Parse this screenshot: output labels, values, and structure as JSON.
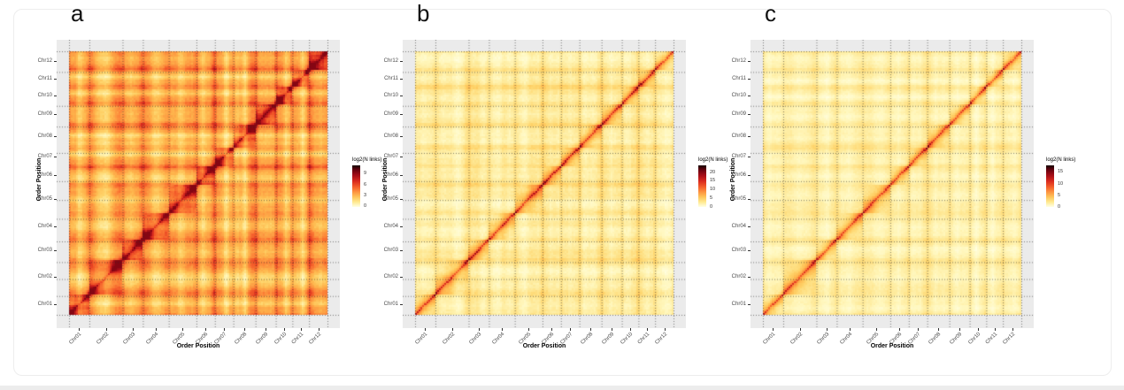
{
  "page": {
    "background": "#ffffff",
    "card_border": "#ededed",
    "bottom_bar_color": "#ececec"
  },
  "chart_data": {
    "type": "heatmap",
    "figure": "Hi-C / linkage contact maps, 3 panels",
    "shared": {
      "x_axis_title": "Order Position",
      "y_axis_title": "Order Position",
      "categories": [
        "Chr01",
        "Chr02",
        "Chr03",
        "Chr04",
        "Chr05",
        "Chr06",
        "Chr07",
        "Chr08",
        "Chr09",
        "Chr10",
        "Chr11",
        "Chr12"
      ],
      "y_axis_order": "Chr01 at bottom to Chr12 at top",
      "relative_chromosome_sizes": [
        23,
        37,
        23,
        28,
        30,
        20,
        20,
        25,
        22,
        18,
        19,
        21
      ],
      "panel_background": "#ebebeb",
      "grid": "dotted dark lines at chromosome boundaries",
      "colormap": "white-yellow-orange-red-darkred-black (low to high log2 N links)",
      "colormap_stops": [
        [
          0.0,
          "#FFFFE5"
        ],
        [
          0.12,
          "#FFF7BC"
        ],
        [
          0.22,
          "#FEE793"
        ],
        [
          0.32,
          "#FED369"
        ],
        [
          0.42,
          "#FEB84E"
        ],
        [
          0.52,
          "#FD9C42"
        ],
        [
          0.6,
          "#FB7C35"
        ],
        [
          0.68,
          "#F25929"
        ],
        [
          0.76,
          "#DC2F20"
        ],
        [
          0.84,
          "#B4121A"
        ],
        [
          0.91,
          "#7F0412"
        ],
        [
          1.0,
          "#150002"
        ]
      ],
      "pattern": "strong continuous diagonal (intra-chromosomal links), pyramid blocks per chromosome, plaid inter-chromosomal background"
    },
    "panels": [
      {
        "label": "a",
        "legend_title": "log2(N links)",
        "legend_ticks": [
          9,
          6,
          3,
          0
        ],
        "legend_range": [
          -0.9,
          10.5
        ],
        "render": {
          "seed": 11,
          "bg": 0.5,
          "tex": 0.1,
          "edge": 0.09,
          "cent": 0.12,
          "chr_var": 0.08,
          "block": 0.26,
          "bpow": 0.9,
          "peak": 0.14,
          "peak2": 0.1,
          "noise": 0.06
        }
      },
      {
        "label": "b",
        "legend_title": "log2(N links)",
        "legend_ticks": [
          20,
          15,
          10,
          5,
          0
        ],
        "legend_range": [
          -1.5,
          22.3
        ],
        "render": {
          "seed": 7,
          "bg": 0.18,
          "tex": 0.06,
          "edge": 0.07,
          "cent": 0.05,
          "chr_var": 0.05,
          "block": 0.3,
          "bpow": 2.0,
          "peak": 0.24,
          "peak2": 0.06,
          "noise": 0.05
        }
      },
      {
        "label": "c",
        "legend_title": "log2(N links)",
        "legend_ticks": [
          15,
          10,
          5,
          0
        ],
        "legend_range": [
          -1.1,
          16.6
        ],
        "render": {
          "seed": 3,
          "bg": 0.16,
          "tex": 0.045,
          "edge": 0.05,
          "cent": 0.04,
          "chr_var": 0.04,
          "block": 0.27,
          "bpow": 2.0,
          "peak": 0.25,
          "peak2": 0.06,
          "noise": 0.04
        }
      }
    ]
  }
}
